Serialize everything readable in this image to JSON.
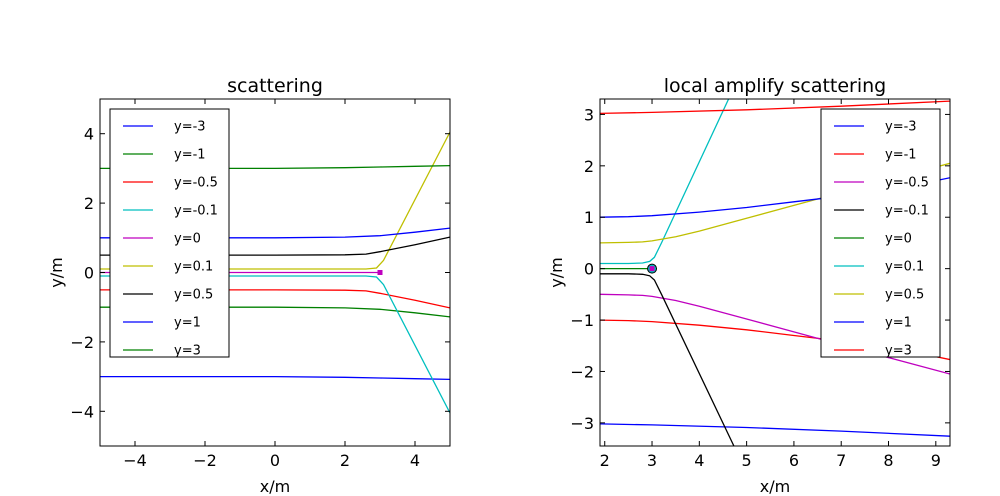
{
  "chart_data": [
    {
      "type": "line",
      "title": "scattering",
      "xlabel": "x/m",
      "ylabel": "y/m",
      "xlim": [
        -5,
        5
      ],
      "ylim": [
        -5,
        5
      ],
      "xticks": [
        -4,
        -2,
        0,
        2,
        4
      ],
      "yticks": [
        -4,
        -2,
        0,
        2,
        4
      ],
      "xtick_labels": [
        "−4",
        "−2",
        "0",
        "2",
        "4"
      ],
      "ytick_labels": [
        "−4",
        "−2",
        "0",
        "2",
        "4"
      ],
      "legend_position": "upper-left",
      "series": [
        {
          "name": "y=-3",
          "color": "#0000ff",
          "x": [
            -5,
            -2,
            0,
            2,
            3,
            4,
            5
          ],
          "y": [
            -3.0,
            -3.0,
            -3.0,
            -3.02,
            -3.04,
            -3.06,
            -3.08
          ]
        },
        {
          "name": "y=-1",
          "color": "#008000",
          "x": [
            -5,
            -2,
            0,
            2,
            3,
            4,
            5
          ],
          "y": [
            -1.0,
            -1.0,
            -1.0,
            -1.02,
            -1.06,
            -1.16,
            -1.28
          ]
        },
        {
          "name": "y=-0.5",
          "color": "#ff0000",
          "x": [
            -5,
            -2,
            0,
            2,
            2.6,
            3,
            4,
            5
          ],
          "y": [
            -0.5,
            -0.5,
            -0.5,
            -0.51,
            -0.53,
            -0.6,
            -0.8,
            -1.02
          ]
        },
        {
          "name": "y=-0.1",
          "color": "#00bfbf",
          "x": [
            -5,
            0,
            2,
            2.6,
            2.9,
            3.1,
            5
          ],
          "y": [
            -0.1,
            -0.1,
            -0.1,
            -0.1,
            -0.13,
            -0.35,
            -4.05
          ]
        },
        {
          "name": "y=0",
          "color": "#bf00bf",
          "x": [
            -5,
            0,
            2,
            3
          ],
          "y": [
            0.0,
            0.0,
            0.0,
            0.0
          ]
        },
        {
          "name": "y=0.1",
          "color": "#bfbf00",
          "x": [
            -5,
            0,
            2,
            2.6,
            2.9,
            3.1,
            5
          ],
          "y": [
            0.1,
            0.1,
            0.1,
            0.1,
            0.13,
            0.35,
            4.05
          ]
        },
        {
          "name": "y=0.5",
          "color": "#000000",
          "x": [
            -5,
            -2,
            0,
            2,
            2.6,
            3,
            4,
            5
          ],
          "y": [
            0.5,
            0.5,
            0.5,
            0.51,
            0.53,
            0.6,
            0.8,
            1.02
          ]
        },
        {
          "name": "y=1",
          "color": "#0000ff",
          "x": [
            -5,
            -2,
            0,
            2,
            3,
            4,
            5
          ],
          "y": [
            1.0,
            1.0,
            1.0,
            1.02,
            1.06,
            1.16,
            1.28
          ]
        },
        {
          "name": "y=3",
          "color": "#008000",
          "x": [
            -5,
            -2,
            0,
            2,
            3,
            4,
            5
          ],
          "y": [
            3.0,
            3.0,
            3.0,
            3.02,
            3.04,
            3.06,
            3.08
          ]
        }
      ],
      "markers": [
        {
          "x": 3,
          "y": 0,
          "color": "#bf00bf"
        }
      ]
    },
    {
      "type": "line",
      "title": "local amplify scattering",
      "xlabel": "x/m",
      "ylabel": "y/m",
      "xlim": [
        1.9,
        9.3
      ],
      "ylim": [
        -3.45,
        3.3
      ],
      "xticks": [
        2,
        3,
        4,
        5,
        6,
        7,
        8,
        9
      ],
      "yticks": [
        -3,
        -2,
        -1,
        0,
        1,
        2,
        3
      ],
      "xtick_labels": [
        "2",
        "3",
        "4",
        "5",
        "6",
        "7",
        "8",
        "9"
      ],
      "ytick_labels": [
        "−3",
        "−2",
        "−1",
        "0",
        "1",
        "2",
        "3"
      ],
      "legend_position": "upper-right",
      "series": [
        {
          "name": "y=-3",
          "color": "#0000ff",
          "x": [
            1.9,
            3,
            5,
            7,
            9.3
          ],
          "y": [
            -3.02,
            -3.04,
            -3.09,
            -3.16,
            -3.26
          ]
        },
        {
          "name": "y=-1",
          "color": "#ff0000",
          "x": [
            1.9,
            2.5,
            3,
            4,
            5,
            6,
            7,
            8,
            9.3
          ],
          "y": [
            -1.0,
            -1.01,
            -1.03,
            -1.1,
            -1.19,
            -1.3,
            -1.41,
            -1.52,
            -1.77
          ]
        },
        {
          "name": "y=-0.5",
          "color": "#bf00bf",
          "x": [
            1.9,
            2.5,
            2.8,
            3,
            3.5,
            4,
            5,
            6,
            7,
            8,
            9.3
          ],
          "y": [
            -0.5,
            -0.51,
            -0.52,
            -0.54,
            -0.62,
            -0.73,
            -0.98,
            -1.23,
            -1.48,
            -1.73,
            -2.05
          ]
        },
        {
          "name": "y=-0.1",
          "color": "#000000",
          "x": [
            1.9,
            2.5,
            2.8,
            2.95,
            3.05,
            3.2,
            4.73
          ],
          "y": [
            -0.1,
            -0.1,
            -0.11,
            -0.14,
            -0.22,
            -0.5,
            -3.45
          ]
        },
        {
          "name": "y=0",
          "color": "#008000",
          "x": [
            1.9,
            2.5,
            3
          ],
          "y": [
            0.0,
            0.0,
            0.0
          ]
        },
        {
          "name": "y=0.1",
          "color": "#00bfbf",
          "x": [
            1.9,
            2.5,
            2.8,
            2.95,
            3.05,
            3.2,
            4.62
          ],
          "y": [
            0.1,
            0.1,
            0.11,
            0.14,
            0.22,
            0.5,
            3.3
          ]
        },
        {
          "name": "y=0.5",
          "color": "#bfbf00",
          "x": [
            1.9,
            2.5,
            2.8,
            3,
            3.5,
            4,
            5,
            6,
            7,
            8,
            9.3
          ],
          "y": [
            0.5,
            0.51,
            0.52,
            0.54,
            0.62,
            0.73,
            0.98,
            1.23,
            1.48,
            1.73,
            2.05
          ]
        },
        {
          "name": "y=1",
          "color": "#0000ff",
          "x": [
            1.9,
            2.5,
            3,
            4,
            5,
            6,
            7,
            8,
            9.3
          ],
          "y": [
            1.0,
            1.01,
            1.03,
            1.1,
            1.19,
            1.3,
            1.41,
            1.52,
            1.77
          ]
        },
        {
          "name": "y=3",
          "color": "#ff0000",
          "x": [
            1.9,
            3,
            5,
            7,
            9.3
          ],
          "y": [
            3.02,
            3.04,
            3.09,
            3.16,
            3.26
          ]
        }
      ],
      "markers": [
        {
          "x": 3,
          "y": 0,
          "color": "#bf00bf"
        }
      ]
    }
  ]
}
